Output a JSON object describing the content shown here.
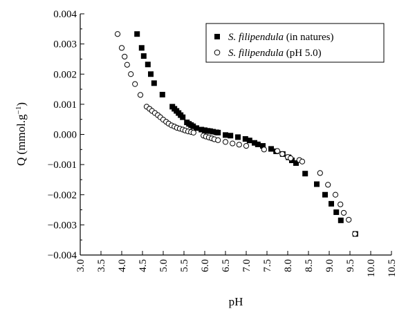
{
  "chart_data": {
    "type": "scatter",
    "title": "",
    "xlabel": "pH",
    "ylabel_main": "Q (mmol.g",
    "ylabel_sup": "−1",
    "ylabel_close": ")",
    "xlim": [
      3.0,
      10.5
    ],
    "ylim": [
      -0.004,
      0.004
    ],
    "x_ticks": [
      "3.0",
      "3.5",
      "4.0",
      "4.5",
      "5.0",
      "5.5",
      "6.0",
      "6.5",
      "7.0",
      "7.5",
      "8.0",
      "8.5",
      "9.0",
      "9.5",
      "10.0",
      "10.5"
    ],
    "y_ticks": [
      "0.004",
      "0.003",
      "0.002",
      "0.001",
      "0.000",
      "−0.001",
      "−0.002",
      "−0.003",
      "−0.004"
    ],
    "legend_position": "top-right",
    "series": [
      {
        "name_italic": "S. filipendula",
        "name_rest": " (in natures)",
        "marker": "filled-square",
        "color": "#000000",
        "points": [
          [
            4.37,
            0.00333
          ],
          [
            4.48,
            0.00287
          ],
          [
            4.53,
            0.0026
          ],
          [
            4.63,
            0.00232
          ],
          [
            4.7,
            0.002
          ],
          [
            4.78,
            0.0017
          ],
          [
            4.98,
            0.00132
          ],
          [
            5.22,
            0.00092
          ],
          [
            5.27,
            0.00085
          ],
          [
            5.32,
            0.00078
          ],
          [
            5.37,
            0.00071
          ],
          [
            5.42,
            0.00064
          ],
          [
            5.47,
            0.00057
          ],
          [
            5.57,
            0.0004
          ],
          [
            5.62,
            0.00035
          ],
          [
            5.67,
            0.00031
          ],
          [
            5.72,
            0.00027
          ],
          [
            5.8,
            0.00021
          ],
          [
            5.92,
            0.00016
          ],
          [
            6.0,
            0.00014
          ],
          [
            6.07,
            0.00012
          ],
          [
            6.13,
            0.00011
          ],
          [
            6.2,
            9e-05
          ],
          [
            6.28,
            7e-05
          ],
          [
            6.32,
            6e-05
          ],
          [
            6.5,
            -2e-05
          ],
          [
            6.62,
            -4e-05
          ],
          [
            6.8,
            -9e-05
          ],
          [
            6.98,
            -0.00015
          ],
          [
            7.08,
            -0.0002
          ],
          [
            7.2,
            -0.00028
          ],
          [
            7.28,
            -0.00033
          ],
          [
            7.4,
            -0.00038
          ],
          [
            7.6,
            -0.00048
          ],
          [
            7.72,
            -0.00056
          ],
          [
            7.88,
            -0.00065
          ],
          [
            8.02,
            -0.00076
          ],
          [
            8.1,
            -0.00086
          ],
          [
            8.2,
            -0.00095
          ],
          [
            8.42,
            -0.0013
          ],
          [
            8.7,
            -0.00165
          ],
          [
            8.9,
            -0.002
          ],
          [
            9.05,
            -0.0023
          ],
          [
            9.17,
            -0.00258
          ],
          [
            9.28,
            -0.00285
          ],
          [
            9.63,
            -0.0033
          ]
        ]
      },
      {
        "name_italic": "S. filipendula",
        "name_rest": " (pH 5.0)",
        "marker": "open-circle",
        "color": "#000000",
        "points": [
          [
            3.9,
            0.00333
          ],
          [
            4.0,
            0.00287
          ],
          [
            4.07,
            0.00258
          ],
          [
            4.13,
            0.00231
          ],
          [
            4.22,
            0.002
          ],
          [
            4.32,
            0.00167
          ],
          [
            4.45,
            0.00131
          ],
          [
            4.6,
            0.00092
          ],
          [
            4.67,
            0.00085
          ],
          [
            4.73,
            0.00078
          ],
          [
            4.8,
            0.00071
          ],
          [
            4.87,
            0.00064
          ],
          [
            4.93,
            0.00057
          ],
          [
            5.0,
            0.00049
          ],
          [
            5.07,
            0.00042
          ],
          [
            5.13,
            0.00036
          ],
          [
            5.2,
            0.0003
          ],
          [
            5.27,
            0.00026
          ],
          [
            5.33,
            0.00022
          ],
          [
            5.4,
            0.00019
          ],
          [
            5.47,
            0.00016
          ],
          [
            5.53,
            0.00013
          ],
          [
            5.6,
            0.0001
          ],
          [
            5.67,
            8e-05
          ],
          [
            5.73,
            6e-05
          ],
          [
            5.97,
            -4e-05
          ],
          [
            6.03,
            -7e-05
          ],
          [
            6.1,
            -0.0001
          ],
          [
            6.17,
            -0.00013
          ],
          [
            6.23,
            -0.00016
          ],
          [
            6.32,
            -0.00019
          ],
          [
            6.5,
            -0.00025
          ],
          [
            6.67,
            -0.0003
          ],
          [
            6.83,
            -0.00034
          ],
          [
            7.0,
            -0.00038
          ],
          [
            7.43,
            -0.0005
          ],
          [
            7.75,
            -0.00055
          ],
          [
            7.87,
            -0.00065
          ],
          [
            8.0,
            -0.00075
          ],
          [
            8.07,
            -0.00079
          ],
          [
            8.28,
            -0.00085
          ],
          [
            8.35,
            -0.0009
          ],
          [
            8.78,
            -0.00128
          ],
          [
            8.97,
            -0.00167
          ],
          [
            9.15,
            -0.002
          ],
          [
            9.27,
            -0.00232
          ],
          [
            9.35,
            -0.0026
          ],
          [
            9.47,
            -0.00283
          ],
          [
            9.62,
            -0.0033
          ]
        ]
      }
    ]
  }
}
